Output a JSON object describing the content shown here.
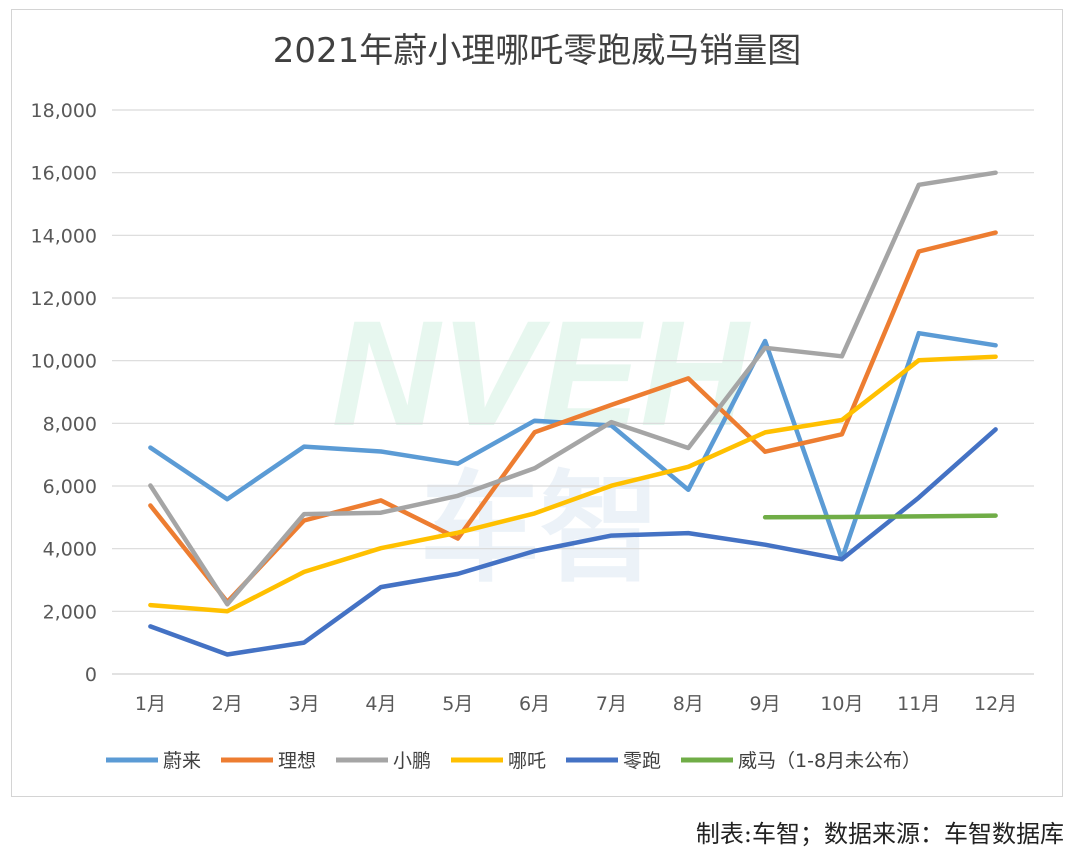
{
  "chart_data": {
    "type": "line",
    "title": "2021年蔚小理哪吒零跑威马销量图",
    "xlabel": "",
    "ylabel": "",
    "categories": [
      "1月",
      "2月",
      "3月",
      "4月",
      "5月",
      "6月",
      "7月",
      "8月",
      "9月",
      "10月",
      "11月",
      "12月"
    ],
    "ylim": [
      0,
      18000
    ],
    "yticks": [
      0,
      2000,
      4000,
      6000,
      8000,
      10000,
      12000,
      14000,
      16000,
      18000
    ],
    "ytick_labels": [
      "0",
      "2,000",
      "4,000",
      "6,000",
      "8,000",
      "10,000",
      "12,000",
      "14,000",
      "16,000",
      "18,000"
    ],
    "grid": true,
    "legend_position": "bottom",
    "series": [
      {
        "name": "蔚来",
        "color": "#5b9bd5",
        "values": [
          7225,
          5578,
          7257,
          7102,
          6711,
          8083,
          7931,
          5880,
          10628,
          3667,
          10878,
          10489
        ]
      },
      {
        "name": "理想",
        "color": "#ed7d31",
        "values": [
          5379,
          2300,
          4900,
          5539,
          4323,
          7713,
          8589,
          9433,
          7094,
          7649,
          13485,
          14087
        ]
      },
      {
        "name": "小鹏",
        "color": "#a5a5a5",
        "values": [
          6015,
          2223,
          5102,
          5147,
          5686,
          6565,
          8040,
          7214,
          10412,
          10138,
          15613,
          16000
        ]
      },
      {
        "name": "哪吒",
        "color": "#ffc000",
        "values": [
          2200,
          2000,
          3257,
          4016,
          4508,
          5125,
          6011,
          6613,
          7710,
          8107,
          10013,
          10127
        ]
      },
      {
        "name": "零跑",
        "color": "#4472c4",
        "values": [
          1518,
          622,
          1002,
          2774,
          3195,
          3925,
          4418,
          4498,
          4128,
          3660,
          5630,
          7807
        ]
      },
      {
        "name": "威马（1-8月未公布）",
        "color": "#70ad47",
        "values": [
          null,
          null,
          null,
          null,
          null,
          null,
          null,
          null,
          5000,
          5010,
          5030,
          5055
        ]
      }
    ]
  },
  "watermark": {
    "text": "NVEH",
    "sub_text": "车智"
  },
  "footer": {
    "text": "制表:车智；数据来源：车智数据库"
  }
}
